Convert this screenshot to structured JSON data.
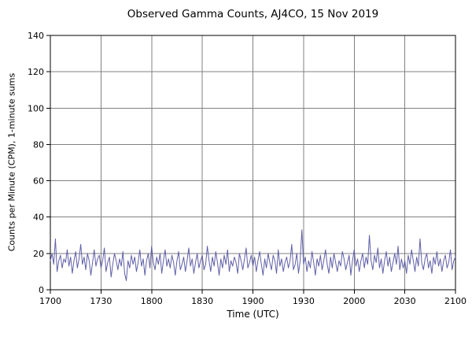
{
  "chart_data": {
    "type": "line",
    "title": "Observed Gamma Counts, AJ4CO, 15 Nov 2019",
    "xlabel": "Time (UTC)",
    "ylabel": "Counts per Minute (CPM), 1-minute sums",
    "x_start_minutes": 0,
    "x_end_minutes": 240,
    "x_tick_minutes": [
      0,
      30,
      60,
      90,
      120,
      150,
      180,
      210,
      240
    ],
    "x_tick_labels": [
      "1700",
      "1730",
      "1800",
      "1830",
      "1900",
      "1930",
      "2000",
      "2030",
      "2100"
    ],
    "y_ticks": [
      0,
      20,
      40,
      60,
      80,
      100,
      120,
      140
    ],
    "ylim": [
      0,
      140
    ],
    "grid": true,
    "legend": "none",
    "line_color": "#5f5fa8",
    "grid_color": "#808080",
    "axis_color": "#000000",
    "values": [
      16,
      20,
      14,
      28,
      10,
      16,
      19,
      12,
      17,
      15,
      22,
      13,
      18,
      9,
      16,
      21,
      12,
      17,
      25,
      14,
      18,
      11,
      20,
      16,
      8,
      15,
      22,
      13,
      17,
      19,
      12,
      16,
      23,
      10,
      15,
      18,
      7,
      14,
      20,
      16,
      11,
      17,
      13,
      21,
      9,
      5,
      16,
      12,
      19,
      14,
      18,
      10,
      15,
      22,
      13,
      17,
      8,
      16,
      20,
      12,
      24,
      15,
      11,
      18,
      14,
      20,
      9,
      16,
      22,
      13,
      17,
      12,
      19,
      15,
      8,
      16,
      21,
      11,
      14,
      18,
      10,
      16,
      23,
      13,
      17,
      9,
      15,
      20,
      12,
      16,
      19,
      11,
      14,
      24,
      16,
      10,
      18,
      13,
      21,
      15,
      8,
      17,
      12,
      19,
      14,
      22,
      10,
      16,
      13,
      18,
      15,
      9,
      20,
      16,
      11,
      17,
      23,
      12,
      15,
      19,
      13,
      18,
      10,
      16,
      21,
      14,
      8,
      17,
      12,
      20,
      15,
      11,
      19,
      16,
      9,
      22,
      13,
      17,
      10,
      15,
      18,
      12,
      16,
      25,
      11,
      14,
      20,
      9,
      16,
      33,
      14,
      18,
      10,
      16,
      12,
      21,
      15,
      8,
      17,
      13,
      19,
      11,
      16,
      22,
      14,
      9,
      18,
      12,
      20,
      15,
      10,
      16,
      13,
      21,
      17,
      11,
      15,
      19,
      8,
      16,
      22,
      13,
      17,
      10,
      16,
      20,
      12,
      18,
      14,
      30,
      16,
      11,
      19,
      15,
      23,
      12,
      17,
      9,
      16,
      21,
      13,
      18,
      10,
      15,
      20,
      14,
      24,
      11,
      17,
      12,
      16,
      9,
      19,
      14,
      22,
      16,
      10,
      18,
      13,
      28,
      15,
      11,
      17,
      20,
      12,
      16,
      9,
      18,
      14,
      21,
      13,
      17,
      10,
      16,
      19,
      12,
      15,
      22,
      11,
      16,
      18
    ]
  }
}
